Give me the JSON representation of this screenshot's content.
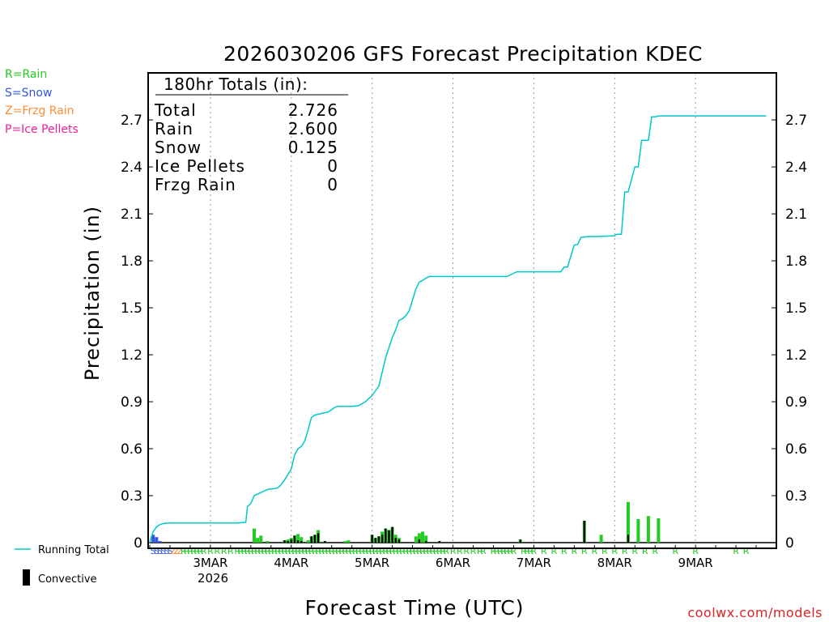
{
  "chart_data": {
    "type": "bar",
    "title": "2026030206 GFS Forecast Precipitation KDEC",
    "xlabel": "Forecast Time (UTC)",
    "ylabel": "Precipitation (in)",
    "ylim": [
      -0.03,
      2.9
    ],
    "yticks": [
      0,
      0.3,
      0.6,
      0.9,
      1.2,
      1.5,
      1.8,
      2.1,
      2.4,
      2.7
    ],
    "ytick_labels": [
      "0",
      "0.3",
      "0.6",
      "0.9",
      "1.2",
      "1.5",
      "1.8",
      "2.1",
      "2.4",
      "2.7"
    ],
    "xlim_hours": [
      0,
      186
    ],
    "date_ticks": [
      {
        "hour": 18,
        "label": "3MAR"
      },
      {
        "hour": 42,
        "label": "4MAR"
      },
      {
        "hour": 66,
        "label": "5MAR"
      },
      {
        "hour": 90,
        "label": "6MAR"
      },
      {
        "hour": 114,
        "label": "7MAR"
      },
      {
        "hour": 138,
        "label": "8MAR"
      },
      {
        "hour": 162,
        "label": "9MAR"
      }
    ],
    "year_label": "2026",
    "totals": {
      "header": "180hr Totals (in):",
      "rows": [
        {
          "label": "Total",
          "value": "2.726"
        },
        {
          "label": "Rain",
          "value": "2.600"
        },
        {
          "label": "Snow",
          "value": "0.125"
        },
        {
          "label": "Ice Pellets",
          "value": "0"
        },
        {
          "label": "Frzg Rain",
          "value": "0"
        }
      ]
    },
    "ptype_legend": [
      {
        "label": "R=Rain",
        "color": "#22cc22"
      },
      {
        "label": "S=Snow",
        "color": "#3355dd"
      },
      {
        "label": "Z=Frzg Rain",
        "color": "#ff8c33"
      },
      {
        "label": "P=Ice Pellets",
        "color": "#ee2299"
      }
    ],
    "series_legend": [
      {
        "label": "Running Total",
        "color": "#00c8c8"
      },
      {
        "label": "Convective",
        "color": "#000000"
      }
    ],
    "running_total": {
      "name": "Running Total",
      "color": "#00c8c8",
      "hours": [
        0,
        0.5,
        1,
        2,
        3,
        4,
        6,
        10,
        16,
        24,
        26,
        28.5,
        29,
        30,
        31,
        32,
        34,
        35,
        37,
        38,
        39,
        40,
        42,
        43,
        44,
        45,
        46,
        47,
        48,
        49,
        50,
        51,
        52,
        53,
        54,
        55,
        56,
        58,
        60,
        62,
        64,
        66,
        68,
        70,
        72,
        73,
        74,
        75,
        76,
        77,
        78,
        79,
        80,
        81,
        82,
        83,
        84,
        85,
        86,
        87,
        88,
        90,
        94,
        100,
        106,
        108,
        109,
        110,
        114,
        118,
        122,
        123,
        124,
        126,
        127,
        128,
        130,
        132,
        138,
        138.5,
        140,
        141,
        142,
        144,
        145,
        146,
        148,
        149,
        150,
        151,
        152,
        170,
        183
      ],
      "values": [
        0,
        0.04,
        0.07,
        0.1,
        0.115,
        0.122,
        0.125,
        0.125,
        0.125,
        0.125,
        0.125,
        0.13,
        0.23,
        0.25,
        0.3,
        0.31,
        0.33,
        0.34,
        0.345,
        0.35,
        0.37,
        0.4,
        0.47,
        0.56,
        0.6,
        0.615,
        0.65,
        0.72,
        0.8,
        0.815,
        0.82,
        0.825,
        0.83,
        0.835,
        0.85,
        0.865,
        0.87,
        0.87,
        0.87,
        0.875,
        0.9,
        0.94,
        1.0,
        1.18,
        1.31,
        1.36,
        1.42,
        1.43,
        1.45,
        1.48,
        1.55,
        1.62,
        1.665,
        1.675,
        1.69,
        1.7,
        1.7,
        1.7,
        1.7,
        1.7,
        1.7,
        1.7,
        1.7,
        1.7,
        1.7,
        1.72,
        1.73,
        1.73,
        1.73,
        1.73,
        1.73,
        1.76,
        1.76,
        1.9,
        1.905,
        1.95,
        1.955,
        1.955,
        1.96,
        1.97,
        1.97,
        2.24,
        2.24,
        2.4,
        2.4,
        2.57,
        2.57,
        2.72,
        2.72,
        2.725,
        2.726,
        2.726,
        2.726
      ]
    },
    "bars": {
      "hours": [
        1,
        2,
        3,
        31,
        32,
        33,
        35,
        40,
        41,
        42,
        43,
        44,
        45,
        47,
        48,
        49,
        50,
        52,
        58,
        59,
        66,
        67,
        68,
        69,
        70,
        71,
        72,
        73,
        74,
        79,
        80,
        81,
        82,
        86,
        110,
        129,
        134,
        142,
        145,
        148,
        151
      ],
      "values": [
        0.05,
        0.035,
        0.01,
        0.09,
        0.03,
        0.045,
        0.01,
        0.015,
        0.02,
        0.03,
        0.045,
        0.055,
        0.035,
        0.015,
        0.04,
        0.05,
        0.08,
        0.01,
        0.01,
        0.015,
        0.05,
        0.03,
        0.04,
        0.07,
        0.09,
        0.08,
        0.1,
        0.05,
        0.03,
        0.04,
        0.06,
        0.07,
        0.045,
        0.01,
        0.02,
        0.14,
        0.05,
        0.26,
        0.15,
        0.17,
        0.155
      ],
      "convective": [
        0,
        0,
        0,
        0,
        0,
        0,
        0,
        0.015,
        0.01,
        0.02,
        0.045,
        0.015,
        0.01,
        0,
        0.04,
        0.05,
        0.06,
        0.01,
        0,
        0,
        0.05,
        0.03,
        0.04,
        0.05,
        0.09,
        0.08,
        0.1,
        0.03,
        0.02,
        0,
        0.02,
        0,
        0.01,
        0.01,
        0.02,
        0.14,
        0,
        0.05,
        0,
        0,
        0
      ],
      "types": [
        "S",
        "S",
        "S",
        "R",
        "R",
        "R",
        "R",
        "R",
        "R",
        "R",
        "R",
        "R",
        "R",
        "R",
        "R",
        "R",
        "R",
        "R",
        "R",
        "R",
        "R",
        "R",
        "R",
        "R",
        "R",
        "R",
        "R",
        "R",
        "R",
        "R",
        "R",
        "R",
        "R",
        "R",
        "R",
        "R",
        "R",
        "R",
        "R",
        "R",
        "R"
      ]
    },
    "ptype_strip": {
      "hours": [
        1,
        2,
        3,
        4,
        5,
        6,
        7,
        8,
        9,
        10,
        11,
        12,
        13,
        14,
        15,
        16,
        18,
        20,
        22,
        24,
        26,
        27,
        28,
        29,
        30,
        31,
        32,
        33,
        34,
        35,
        36,
        37,
        38,
        39,
        40,
        41,
        42,
        43,
        44,
        45,
        46,
        47,
        48,
        49,
        50,
        51,
        52,
        53,
        54,
        55,
        56,
        57,
        58,
        59,
        60,
        61,
        62,
        63,
        64,
        65,
        66,
        67,
        68,
        69,
        70,
        71,
        72,
        73,
        74,
        75,
        76,
        77,
        78,
        79,
        80,
        81,
        82,
        83,
        84,
        85,
        86,
        87,
        88,
        90,
        92,
        94,
        96,
        98,
        99,
        102,
        103,
        104,
        105,
        106,
        107,
        108,
        111,
        112,
        113,
        114,
        117,
        120,
        123,
        126,
        129,
        132,
        135,
        138,
        141,
        144,
        147,
        150,
        156,
        162,
        174,
        177
      ],
      "types": [
        "S",
        "S",
        "S",
        "S",
        "S",
        "S",
        "Z",
        "Z",
        "Z",
        "R",
        "R",
        "R",
        "R",
        "R",
        "R",
        "R",
        "R",
        "R",
        "R",
        "R",
        "R",
        "R",
        "R",
        "R",
        "R",
        "R",
        "R",
        "R",
        "R",
        "R",
        "R",
        "R",
        "R",
        "R",
        "R",
        "R",
        "R",
        "R",
        "R",
        "R",
        "R",
        "R",
        "R",
        "R",
        "R",
        "R",
        "R",
        "R",
        "R",
        "R",
        "R",
        "R",
        "R",
        "R",
        "R",
        "R",
        "R",
        "R",
        "R",
        "R",
        "R",
        "R",
        "R",
        "R",
        "R",
        "R",
        "R",
        "R",
        "R",
        "R",
        "R",
        "R",
        "R",
        "R",
        "R",
        "R",
        "R",
        "R",
        "R",
        "R",
        "R",
        "R",
        "R",
        "R",
        "R",
        "R",
        "R",
        "R",
        "R",
        "R",
        "R",
        "R",
        "R",
        "R",
        "R",
        "R",
        "R",
        "R",
        "R",
        "R",
        "R",
        "R",
        "R",
        "R",
        "R",
        "R",
        "R",
        "R",
        "R",
        "R",
        "R",
        "R",
        "R",
        "R",
        "R",
        "R"
      ]
    },
    "credit": "coolwx.com/models"
  }
}
